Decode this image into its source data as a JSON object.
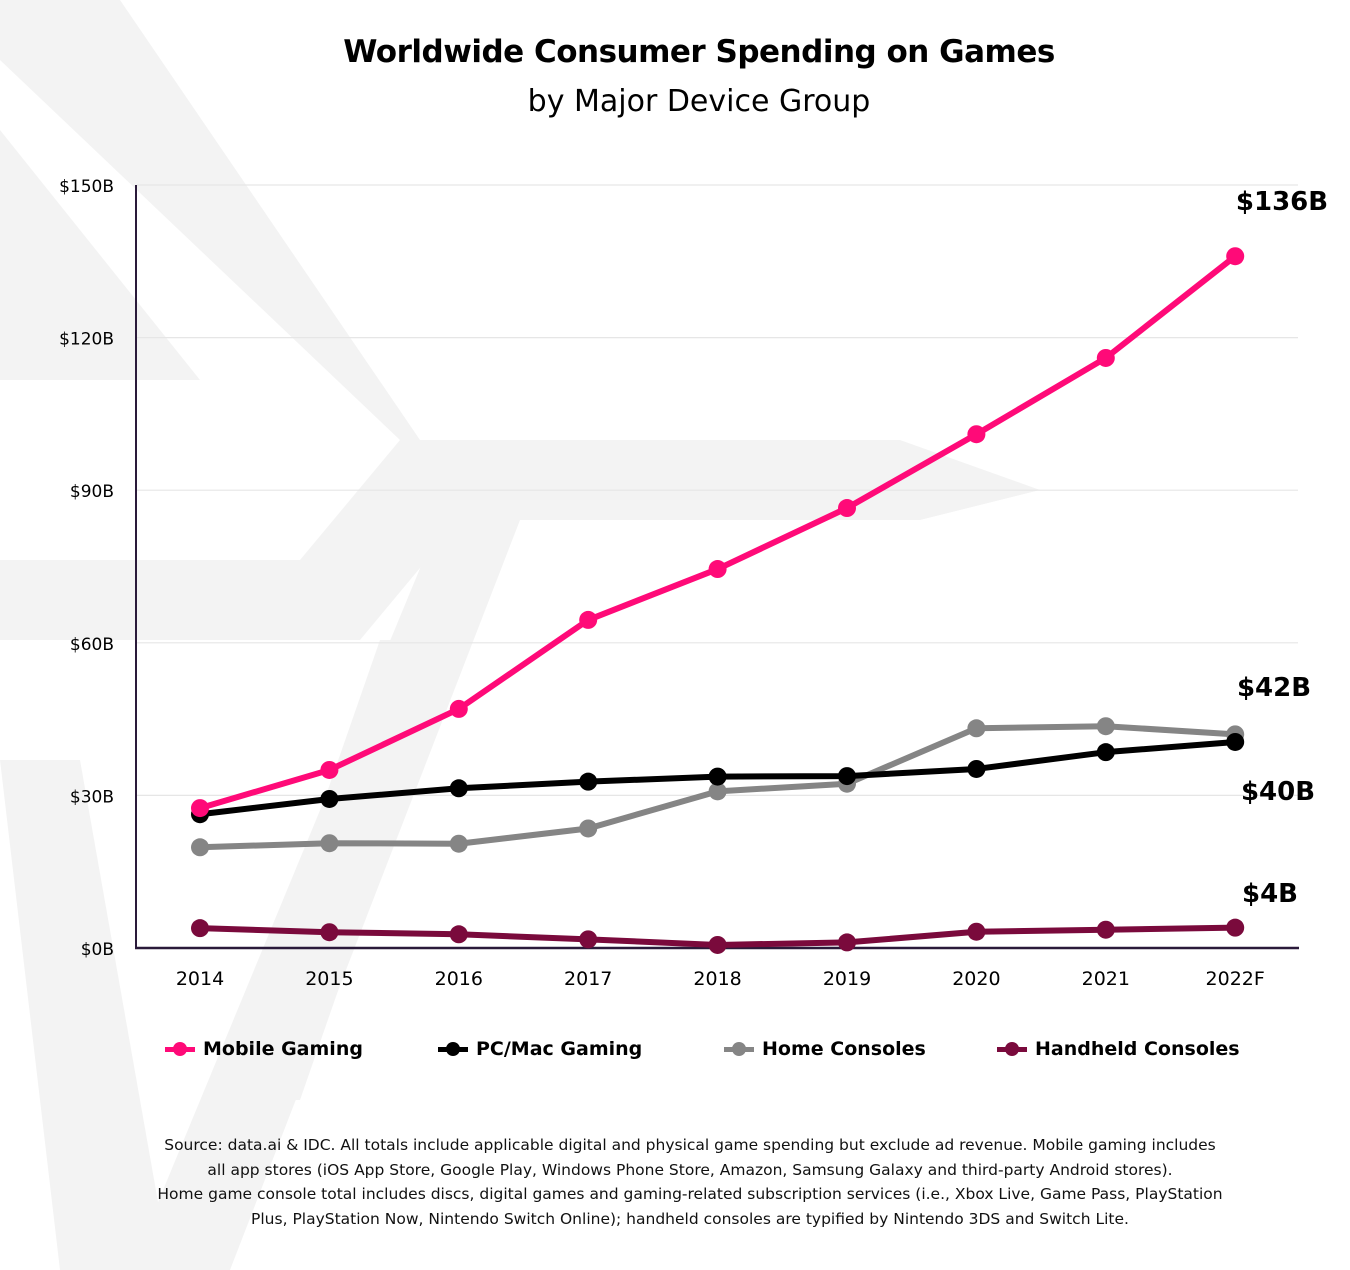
{
  "title": "Worldwide Consumer Spending on Games",
  "subtitle": "by Major Device Group",
  "colors": {
    "mobile": "#ff0a78",
    "pc": "#000000",
    "home": "#858585",
    "handheld": "#7a0a3c",
    "axis": "#2a1a3a",
    "grid": "#e6e6e6",
    "watermark": "#f2f2f2"
  },
  "legend": [
    {
      "label": "Mobile Gaming",
      "color": "#ff0a78"
    },
    {
      "label": "PC/Mac Gaming",
      "color": "#000000"
    },
    {
      "label": "Home Consoles",
      "color": "#858585"
    },
    {
      "label": "Handheld Consoles",
      "color": "#7a0a3c"
    }
  ],
  "chart_data": {
    "type": "line",
    "categories": [
      "2014",
      "2015",
      "2016",
      "2017",
      "2018",
      "2019",
      "2020",
      "2021",
      "2022F"
    ],
    "ylim": [
      0,
      150
    ],
    "yticks": [
      0,
      30,
      60,
      90,
      120,
      150
    ],
    "ytick_labels": [
      "$0B",
      "$30B",
      "$60B",
      "$90B",
      "$120B",
      "$150B"
    ],
    "grid": true,
    "legend_position": "bottom",
    "series": [
      {
        "name": "Mobile Gaming",
        "color": "#ff0a78",
        "values": [
          27.5,
          35,
          47,
          64.5,
          74.5,
          86.5,
          101,
          116,
          136
        ]
      },
      {
        "name": "PC/Mac Gaming",
        "color": "#000000",
        "values": [
          26.3,
          29.3,
          31.4,
          32.7,
          33.7,
          33.8,
          35.2,
          38.5,
          40.5
        ]
      },
      {
        "name": "Home Consoles",
        "color": "#858585",
        "values": [
          19.8,
          20.6,
          20.5,
          23.5,
          30.8,
          32.3,
          43.2,
          43.6,
          42
        ]
      },
      {
        "name": "Handheld Consoles",
        "color": "#7a0a3c",
        "values": [
          3.9,
          3.1,
          2.7,
          1.7,
          0.6,
          1.1,
          3.2,
          3.6,
          4
        ]
      }
    ],
    "end_labels": [
      {
        "series": "Mobile Gaming",
        "text": "$136B"
      },
      {
        "series": "Home Consoles",
        "text": "$42B"
      },
      {
        "series": "PC/Mac Gaming",
        "text": "$40B"
      },
      {
        "series": "Handheld Consoles",
        "text": "$4B"
      }
    ]
  },
  "source_lines": [
    "Source: data.ai & IDC. All totals include applicable digital and physical game spending but exclude ad revenue. Mobile gaming includes",
    "all app stores (iOS App Store, Google Play, Windows Phone Store, Amazon, Samsung Galaxy and third-party Android stores).",
    "Home game console total includes discs, digital games and gaming-related subscription services (i.e., Xbox Live, Game Pass, PlayStation",
    "Plus, PlayStation Now, Nintendo Switch Online); handheld consoles are typified by Nintendo 3DS and Switch Lite."
  ]
}
